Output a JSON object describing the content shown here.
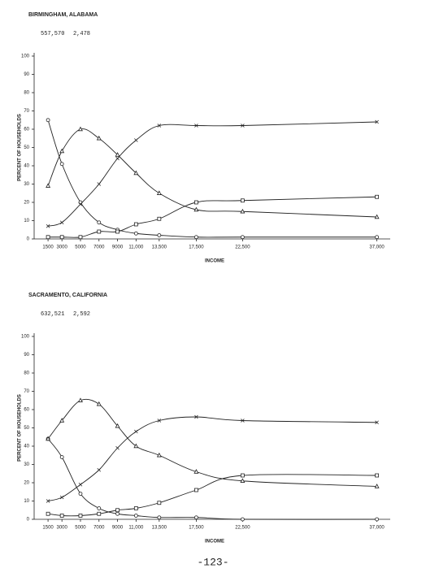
{
  "chart_data": [
    {
      "type": "line",
      "title": "BIRMINGHAM, ALABAMA",
      "annotations": [
        "557,570",
        "2,478"
      ],
      "x_label": "INCOME",
      "y_label": "PERCENT OF HOUSEHOLDS",
      "x": [
        1500,
        3000,
        5000,
        7000,
        9000,
        11000,
        13500,
        17500,
        22500,
        37000
      ],
      "xlim": [
        0,
        38000
      ],
      "xticks": [
        1500,
        3000,
        5000,
        7000,
        9000,
        {
          "value": 11000,
          "label": "11,000"
        },
        {
          "value": 13500,
          "label": "13,500"
        },
        {
          "value": 17500,
          "label": "17,500"
        },
        {
          "value": 22500,
          "label": "22,500"
        },
        {
          "value": 37000,
          "label": "37,000"
        }
      ],
      "ylim": [
        0,
        100
      ],
      "yticks": [
        0,
        10,
        20,
        30,
        40,
        50,
        60,
        70,
        80,
        90,
        100
      ],
      "series": [
        {
          "marker": "circle",
          "color": "#222",
          "values": [
            65,
            41,
            20,
            9,
            5,
            3,
            2,
            1,
            1,
            1
          ]
        },
        {
          "marker": "triangle",
          "color": "#222",
          "values": [
            29,
            48,
            60,
            55,
            46,
            36,
            25,
            16,
            15,
            12
          ]
        },
        {
          "marker": "x",
          "color": "#222",
          "values": [
            7,
            9,
            19,
            30,
            44,
            54,
            62,
            62,
            62,
            64
          ]
        },
        {
          "marker": "square",
          "color": "#222",
          "values": [
            1,
            1,
            1,
            4,
            4,
            8,
            11,
            20,
            21,
            23
          ]
        }
      ]
    },
    {
      "type": "line",
      "title": "SACRAMENTO, CALIFORNIA",
      "annotations": [
        "632,521",
        "2,592"
      ],
      "x_label": "INCOME",
      "y_label": "PERCENT OF HOUSEHOLDS",
      "x": [
        1500,
        3000,
        5000,
        7000,
        9000,
        11000,
        13500,
        17500,
        22500,
        37000
      ],
      "xlim": [
        0,
        38000
      ],
      "xticks": [
        1500,
        3000,
        5000,
        7000,
        9000,
        {
          "value": 11000,
          "label": "11,000"
        },
        {
          "value": 13500,
          "label": "13,500"
        },
        {
          "value": 17500,
          "label": "17,500"
        },
        {
          "value": 22500,
          "label": "22,500"
        },
        {
          "value": 37000,
          "label": "37,000"
        }
      ],
      "ylim": [
        0,
        100
      ],
      "yticks": [
        0,
        10,
        20,
        30,
        40,
        50,
        60,
        70,
        80,
        90,
        100
      ],
      "series": [
        {
          "marker": "circle",
          "color": "#222",
          "values": [
            44,
            34,
            14,
            6,
            3,
            2,
            1,
            1,
            0,
            0
          ]
        },
        {
          "marker": "triangle",
          "color": "#222",
          "values": [
            44,
            54,
            65,
            63,
            51,
            40,
            35,
            26,
            21,
            18
          ]
        },
        {
          "marker": "x",
          "color": "#222",
          "values": [
            10,
            12,
            19,
            27,
            39,
            48,
            54,
            56,
            54,
            53
          ]
        },
        {
          "marker": "square",
          "color": "#222",
          "values": [
            3,
            2,
            2,
            3,
            5,
            6,
            9,
            16,
            24,
            24
          ]
        }
      ]
    }
  ],
  "page_number": "-123-"
}
